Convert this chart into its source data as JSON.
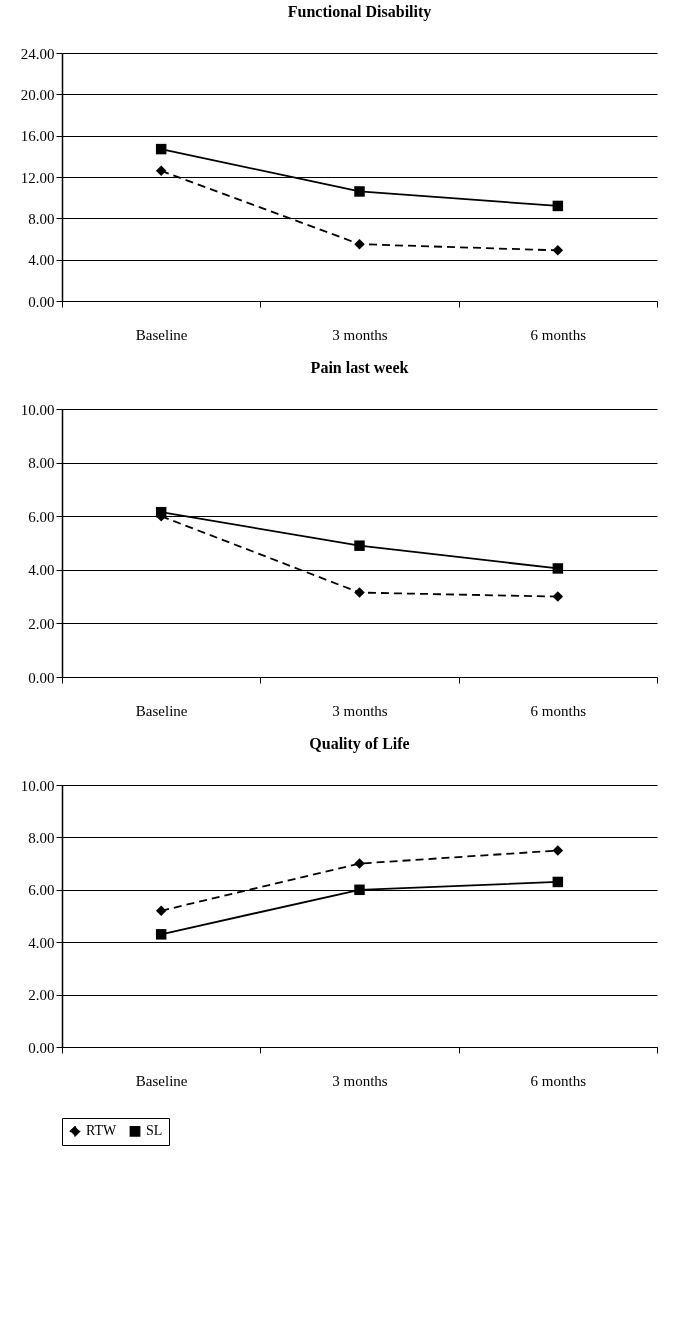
{
  "chart_data": [
    {
      "type": "line",
      "title": "Functional Disability",
      "categories": [
        "Baseline",
        "3 months",
        "6 months"
      ],
      "ylim": [
        0,
        24
      ],
      "yticks": [
        {
          "value": 0,
          "label": "0.00"
        },
        {
          "value": 4,
          "label": "4.00"
        },
        {
          "value": 8,
          "label": "8.00"
        },
        {
          "value": 12,
          "label": "12.00"
        },
        {
          "value": 16,
          "label": "16.00"
        },
        {
          "value": 20,
          "label": "20.00"
        },
        {
          "value": 24,
          "label": "24.00"
        }
      ],
      "grid": "y",
      "legend": "bottom",
      "series": [
        {
          "name": "RTW",
          "color": "#000000",
          "marker": "diamond",
          "line_style": "dashed",
          "values": [
            12.6,
            5.5,
            4.9
          ]
        },
        {
          "name": "SL",
          "color": "#000000",
          "marker": "square",
          "line_style": "solid",
          "values": [
            14.7,
            10.6,
            9.2
          ]
        }
      ]
    },
    {
      "type": "line",
      "title": "Pain last week",
      "categories": [
        "Baseline",
        "3 months",
        "6 months"
      ],
      "ylim": [
        0,
        10
      ],
      "yticks": [
        {
          "value": 0,
          "label": "0.00"
        },
        {
          "value": 2,
          "label": "2.00"
        },
        {
          "value": 4,
          "label": "4.00"
        },
        {
          "value": 6,
          "label": "6.00"
        },
        {
          "value": 8,
          "label": "8.00"
        },
        {
          "value": 10,
          "label": "10.00"
        }
      ],
      "grid": "y",
      "legend": "bottom",
      "series": [
        {
          "name": "RTW",
          "color": "#000000",
          "marker": "diamond",
          "line_style": "dashed",
          "values": [
            6.0,
            3.15,
            3.0
          ]
        },
        {
          "name": "SL",
          "color": "#000000",
          "marker": "square",
          "line_style": "solid",
          "values": [
            6.15,
            4.9,
            4.05
          ]
        }
      ]
    },
    {
      "type": "line",
      "title": "Quality of Life",
      "categories": [
        "Baseline",
        "3 months",
        "6 months"
      ],
      "ylim": [
        0,
        10
      ],
      "yticks": [
        {
          "value": 0,
          "label": "0.00"
        },
        {
          "value": 2,
          "label": "2.00"
        },
        {
          "value": 4,
          "label": "4.00"
        },
        {
          "value": 6,
          "label": "6.00"
        },
        {
          "value": 8,
          "label": "8.00"
        },
        {
          "value": 10,
          "label": "10.00"
        }
      ],
      "grid": "y",
      "legend": "bottom",
      "series": [
        {
          "name": "RTW",
          "color": "#000000",
          "marker": "diamond",
          "line_style": "dashed",
          "values": [
            5.2,
            7.0,
            7.5
          ]
        },
        {
          "name": "SL",
          "color": "#000000",
          "marker": "square",
          "line_style": "solid",
          "values": [
            4.3,
            6.0,
            6.3
          ]
        }
      ]
    }
  ]
}
